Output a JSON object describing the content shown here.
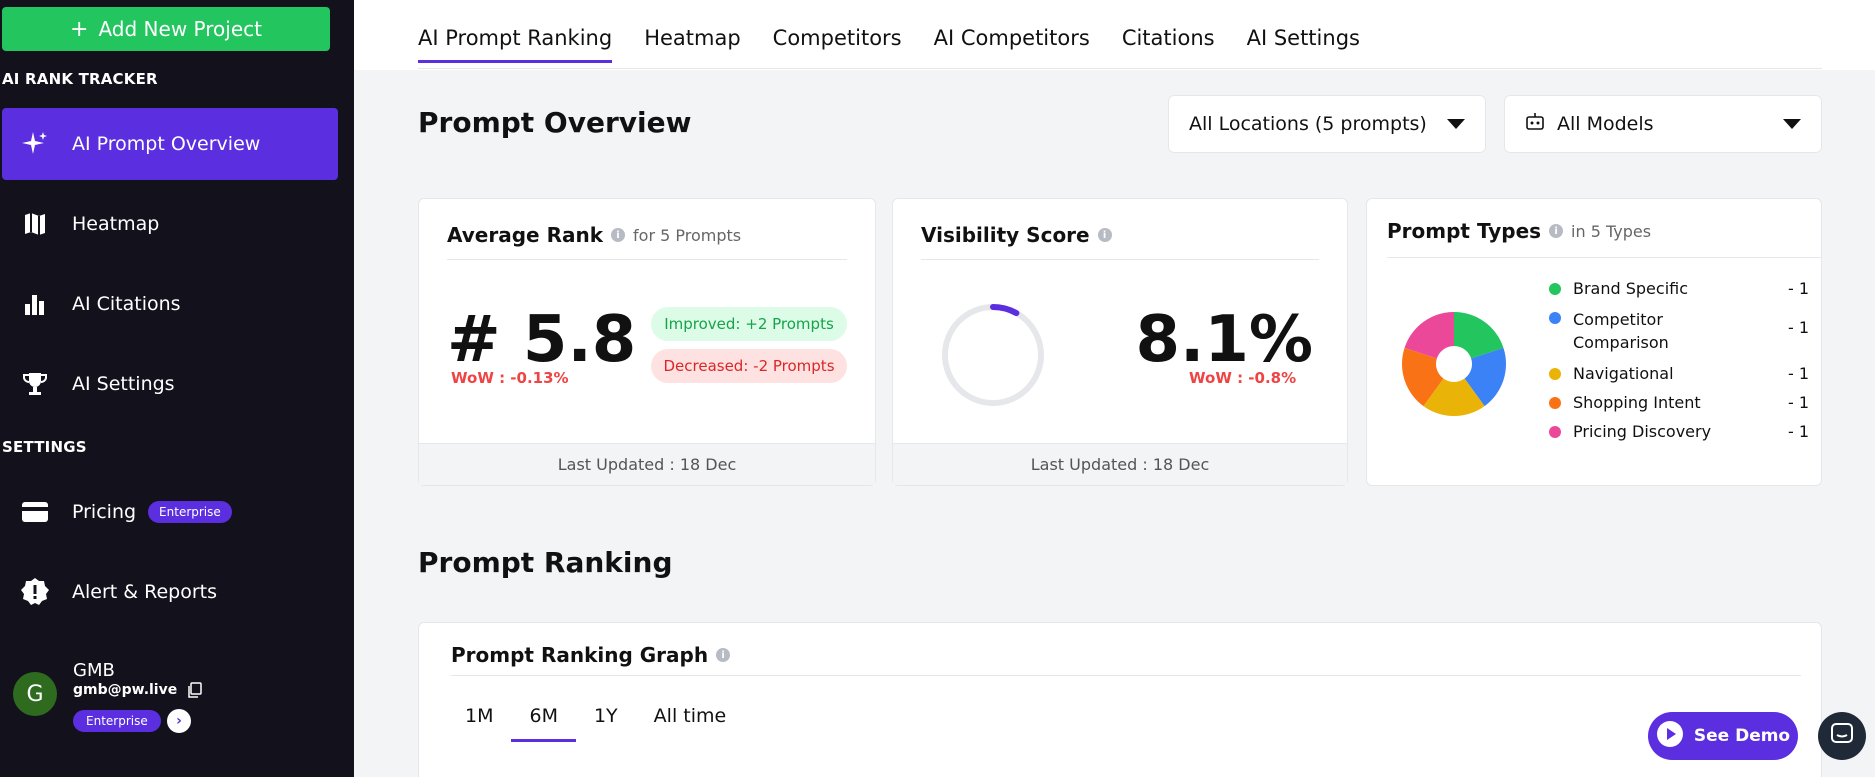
{
  "sidebar": {
    "add_button_label": "Add New Project",
    "section_ai": "AI RANK TRACKER",
    "section_settings": "SETTINGS",
    "items": [
      {
        "label": "AI Prompt Overview"
      },
      {
        "label": "Heatmap"
      },
      {
        "label": "AI Citations"
      },
      {
        "label": "AI Settings"
      },
      {
        "label": "Pricing",
        "badge": "Enterprise"
      },
      {
        "label": "Alert & Reports"
      }
    ],
    "user": {
      "initial": "G",
      "name": "GMB",
      "email": "gmb@pw.live",
      "badge": "Enterprise"
    }
  },
  "tabs": [
    "AI Prompt Ranking",
    "Heatmap",
    "Competitors",
    "AI Competitors",
    "Citations",
    "AI Settings"
  ],
  "overview": {
    "title": "Prompt Overview",
    "location_select": "All Locations (5 prompts)",
    "model_select": "All Models"
  },
  "avg_rank": {
    "title": "Average Rank",
    "sub": "for 5 Prompts",
    "value": "# 5.8",
    "wow": "WoW : -0.13%",
    "improved": "Improved: +2 Prompts",
    "decreased": "Decreased: -2 Prompts",
    "updated": "Last Updated : 18 Dec"
  },
  "visibility": {
    "title": "Visibility Score",
    "value": "8.1%",
    "percent": 8.1,
    "wow": "WoW : -0.8%",
    "updated": "Last Updated : 18 Dec"
  },
  "prompt_types": {
    "title": "Prompt Types",
    "sub": "in 5 Types",
    "items": [
      {
        "label": "Brand Specific",
        "value": "- 1",
        "color": "#22c55e"
      },
      {
        "label": "Competitor Comparison",
        "value": "- 1",
        "color": "#3b82f6"
      },
      {
        "label": "Navigational",
        "value": "- 1",
        "color": "#eab308"
      },
      {
        "label": "Shopping Intent",
        "value": "- 1",
        "color": "#f97316"
      },
      {
        "label": "Pricing Discovery",
        "value": "- 1",
        "color": "#ec4899"
      }
    ]
  },
  "ranking": {
    "title": "Prompt Ranking",
    "graph_title": "Prompt Ranking Graph",
    "periods": [
      "1M",
      "6M",
      "1Y",
      "All time"
    ],
    "active_period": "6M"
  },
  "demo_button": "See Demo",
  "colors": {
    "accent": "#5b2ee0",
    "green": "#22c55e",
    "sidebar_bg": "#12111c"
  }
}
